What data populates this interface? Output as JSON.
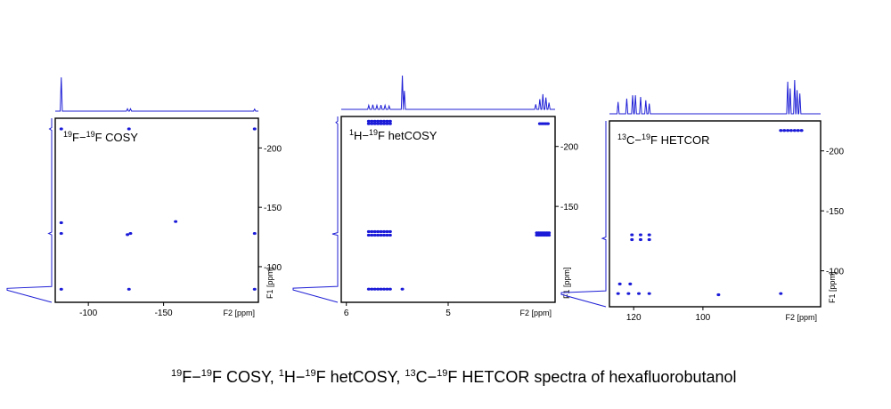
{
  "caption": {
    "iso_f": "19",
    "text_a": "F−",
    "iso_f2": "19",
    "text_b": "F COSY, ",
    "iso_h": "1",
    "text_c": "H−",
    "iso_f3": "19",
    "text_d": "F hetCOSY, ",
    "iso_c": "13",
    "text_e": "C−",
    "iso_f4": "19",
    "text_f": "F HETCOR spectra of hexafluorobutanol"
  },
  "colors": {
    "peak": "#1a1ad8",
    "projection": "#1f1fd6",
    "frame": "#000000"
  },
  "chart_data": [
    {
      "type": "scatter",
      "title": "19F−19F COSY",
      "xlabel": "F2 [ppm]",
      "ylabel": "F1 [ppm]",
      "xlim": [
        -78,
        -213
      ],
      "ylim": [
        -70,
        -225
      ],
      "xticks": [
        -100,
        -150
      ],
      "yticks": [
        -200,
        -150,
        -100
      ],
      "xtick_labels": [
        "-100",
        "-150"
      ],
      "ytick_labels": [
        "-200",
        "-150",
        "-100"
      ],
      "grid": false,
      "points": [
        {
          "x": -82,
          "y": -81
        },
        {
          "x": -127,
          "y": -81
        },
        {
          "x": -210.5,
          "y": -81
        },
        {
          "x": -82,
          "y": -128
        },
        {
          "x": -126,
          "y": -127
        },
        {
          "x": -128,
          "y": -128
        },
        {
          "x": -210.5,
          "y": -128
        },
        {
          "x": -82,
          "y": -216
        },
        {
          "x": -127,
          "y": -216
        },
        {
          "x": -210.5,
          "y": -216
        },
        {
          "x": -82,
          "y": -137
        },
        {
          "x": -158,
          "y": -138
        }
      ],
      "projection_f2": [
        {
          "x": -82,
          "h": 1.0
        },
        {
          "x": -126,
          "h": 0.07
        },
        {
          "x": -128,
          "h": 0.07
        },
        {
          "x": -210.5,
          "h": 0.06
        }
      ],
      "projection_f1": [
        {
          "y": -81,
          "h": 1.0
        },
        {
          "y": -128,
          "h": 0.07
        },
        {
          "y": -216,
          "h": 0.05
        }
      ]
    },
    {
      "type": "scatter",
      "title": "1H−19F hetCOSY",
      "xlabel": "F2 [ppm]",
      "ylabel": "F1 [ppm]",
      "xlim": [
        6.05,
        3.95
      ],
      "ylim": [
        -70,
        -225
      ],
      "xticks": [
        6,
        5
      ],
      "yticks": [
        -200,
        -150
      ],
      "xtick_labels": [
        "6",
        "5"
      ],
      "ytick_labels": [
        "-200",
        "-150"
      ],
      "grid": false,
      "points": [
        {
          "x": 5.78,
          "y": -81
        },
        {
          "x": 5.75,
          "y": -81
        },
        {
          "x": 5.72,
          "y": -81
        },
        {
          "x": 5.69,
          "y": -81
        },
        {
          "x": 5.66,
          "y": -81
        },
        {
          "x": 5.63,
          "y": -81
        },
        {
          "x": 5.6,
          "y": -81
        },
        {
          "x": 5.57,
          "y": -81
        },
        {
          "x": 5.45,
          "y": -81
        },
        {
          "x": 5.78,
          "y": -126
        },
        {
          "x": 5.75,
          "y": -126
        },
        {
          "x": 5.72,
          "y": -126
        },
        {
          "x": 5.69,
          "y": -126
        },
        {
          "x": 5.66,
          "y": -126
        },
        {
          "x": 5.63,
          "y": -126
        },
        {
          "x": 5.6,
          "y": -126
        },
        {
          "x": 5.57,
          "y": -126
        },
        {
          "x": 5.78,
          "y": -129
        },
        {
          "x": 5.75,
          "y": -129
        },
        {
          "x": 5.72,
          "y": -129
        },
        {
          "x": 5.69,
          "y": -129
        },
        {
          "x": 5.66,
          "y": -129
        },
        {
          "x": 5.63,
          "y": -129
        },
        {
          "x": 5.6,
          "y": -129
        },
        {
          "x": 5.57,
          "y": -129
        },
        {
          "x": 4.13,
          "y": -126
        },
        {
          "x": 4.11,
          "y": -126
        },
        {
          "x": 4.09,
          "y": -126
        },
        {
          "x": 4.07,
          "y": -126
        },
        {
          "x": 4.05,
          "y": -126
        },
        {
          "x": 4.03,
          "y": -126
        },
        {
          "x": 4.01,
          "y": -126
        },
        {
          "x": 4.13,
          "y": -128
        },
        {
          "x": 4.11,
          "y": -128
        },
        {
          "x": 4.09,
          "y": -128
        },
        {
          "x": 4.07,
          "y": -128
        },
        {
          "x": 4.05,
          "y": -128
        },
        {
          "x": 4.03,
          "y": -128
        },
        {
          "x": 4.01,
          "y": -128
        },
        {
          "x": 5.78,
          "y": -219
        },
        {
          "x": 5.75,
          "y": -219
        },
        {
          "x": 5.72,
          "y": -219
        },
        {
          "x": 5.69,
          "y": -219
        },
        {
          "x": 5.66,
          "y": -219
        },
        {
          "x": 5.63,
          "y": -219
        },
        {
          "x": 5.6,
          "y": -219
        },
        {
          "x": 5.57,
          "y": -219
        },
        {
          "x": 5.78,
          "y": -221
        },
        {
          "x": 5.75,
          "y": -221
        },
        {
          "x": 5.72,
          "y": -221
        },
        {
          "x": 5.69,
          "y": -221
        },
        {
          "x": 5.66,
          "y": -221
        },
        {
          "x": 5.63,
          "y": -221
        },
        {
          "x": 5.6,
          "y": -221
        },
        {
          "x": 5.57,
          "y": -221
        },
        {
          "x": 4.1,
          "y": -219
        },
        {
          "x": 4.08,
          "y": -219
        },
        {
          "x": 4.06,
          "y": -219
        },
        {
          "x": 4.04,
          "y": -219
        },
        {
          "x": 4.02,
          "y": -219
        }
      ],
      "projection_f2": [
        {
          "x": 5.78,
          "h": 0.12
        },
        {
          "x": 5.74,
          "h": 0.14
        },
        {
          "x": 5.7,
          "h": 0.12
        },
        {
          "x": 5.66,
          "h": 0.13
        },
        {
          "x": 5.62,
          "h": 0.12
        },
        {
          "x": 5.58,
          "h": 0.1
        },
        {
          "x": 5.45,
          "h": 1.0
        },
        {
          "x": 5.43,
          "h": 0.55
        },
        {
          "x": 4.14,
          "h": 0.15
        },
        {
          "x": 4.1,
          "h": 0.3
        },
        {
          "x": 4.07,
          "h": 0.45
        },
        {
          "x": 4.04,
          "h": 0.35
        },
        {
          "x": 4.01,
          "h": 0.2
        }
      ],
      "projection_f1": [
        {
          "y": -81,
          "h": 1.0
        },
        {
          "y": -127,
          "h": 0.12
        },
        {
          "y": -220,
          "h": 0.04
        }
      ]
    },
    {
      "type": "scatter",
      "title": "13C−19F HETCOR",
      "xlabel": "F2 [ppm]",
      "ylabel": "F1 [ppm]",
      "xlim": [
        127,
        66
      ],
      "ylim": [
        -70,
        -225
      ],
      "xticks": [
        120,
        100
      ],
      "yticks": [
        -200,
        -150,
        -100
      ],
      "xtick_labels": [
        "120",
        "100"
      ],
      "ytick_labels": [
        "-200",
        "-150",
        "-100"
      ],
      "grid": false,
      "points": [
        {
          "x": 124.5,
          "y": -81
        },
        {
          "x": 121.5,
          "y": -81
        },
        {
          "x": 118.5,
          "y": -81
        },
        {
          "x": 115.5,
          "y": -81
        },
        {
          "x": 124,
          "y": -89
        },
        {
          "x": 121,
          "y": -89
        },
        {
          "x": 120.5,
          "y": -126
        },
        {
          "x": 120.5,
          "y": -130
        },
        {
          "x": 118,
          "y": -126
        },
        {
          "x": 118,
          "y": -130
        },
        {
          "x": 115.5,
          "y": -126
        },
        {
          "x": 115.5,
          "y": -130
        },
        {
          "x": 95.5,
          "y": -80
        },
        {
          "x": 77.5,
          "y": -81
        },
        {
          "x": 77.5,
          "y": -217
        },
        {
          "x": 76.5,
          "y": -217
        },
        {
          "x": 75.5,
          "y": -217
        },
        {
          "x": 74.5,
          "y": -217
        },
        {
          "x": 73.5,
          "y": -217
        },
        {
          "x": 72.5,
          "y": -217
        },
        {
          "x": 71.5,
          "y": -217
        }
      ],
      "projection_f2": [
        {
          "x": 124.5,
          "h": 0.35
        },
        {
          "x": 122,
          "h": 0.45
        },
        {
          "x": 120.3,
          "h": 0.55
        },
        {
          "x": 119.5,
          "h": 0.55
        },
        {
          "x": 118,
          "h": 0.5
        },
        {
          "x": 116.5,
          "h": 0.4
        },
        {
          "x": 115.5,
          "h": 0.3
        },
        {
          "x": 75.5,
          "h": 0.95
        },
        {
          "x": 74.8,
          "h": 0.75
        },
        {
          "x": 73.5,
          "h": 1.0
        },
        {
          "x": 72.8,
          "h": 0.7
        },
        {
          "x": 72,
          "h": 0.6
        }
      ],
      "projection_f1": [
        {
          "y": -81,
          "h": 1.0
        },
        {
          "y": -127,
          "h": 0.08
        }
      ]
    }
  ]
}
